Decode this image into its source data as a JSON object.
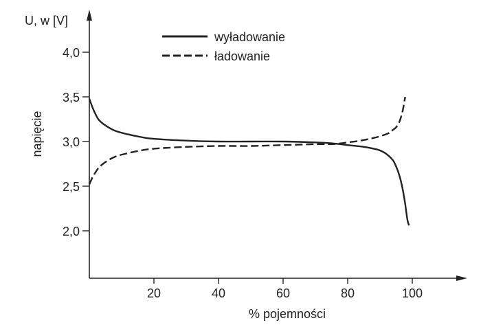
{
  "chart_data": {
    "type": "line",
    "title": "",
    "ylabel_top": "U, w [V]",
    "ylabel_side": "napięcie",
    "xlabel": "% pojemności",
    "xlim": [
      0,
      110
    ],
    "ylim": [
      1.5,
      4.4
    ],
    "xticks": [
      20,
      40,
      60,
      80,
      100
    ],
    "xtick_labels": [
      "20",
      "40",
      "60",
      "80",
      "100"
    ],
    "yticks": [
      2.0,
      2.5,
      3.0,
      3.5,
      4.0
    ],
    "ytick_labels": [
      "2,0",
      "2,5",
      "3,0",
      "3,5",
      "4,0"
    ],
    "grid": false,
    "legend": "top-center",
    "series": [
      {
        "name": "wyładowanie",
        "style": "solid",
        "x": [
          0,
          1,
          2,
          3,
          5,
          8,
          12,
          16,
          20,
          30,
          40,
          50,
          60,
          70,
          75,
          80,
          85,
          88,
          90,
          92,
          94,
          95,
          96,
          97,
          97.8,
          98.5,
          99
        ],
        "y": [
          3.48,
          3.38,
          3.3,
          3.24,
          3.18,
          3.12,
          3.08,
          3.05,
          3.03,
          3.01,
          3.0,
          3.0,
          3.0,
          2.99,
          2.98,
          2.96,
          2.94,
          2.92,
          2.9,
          2.86,
          2.79,
          2.72,
          2.62,
          2.47,
          2.3,
          2.12,
          2.06
        ]
      },
      {
        "name": "ładowanie",
        "style": "dashed",
        "x": [
          0,
          1,
          2,
          3,
          5,
          8,
          12,
          16,
          20,
          30,
          40,
          50,
          60,
          70,
          75,
          78,
          80,
          84,
          88,
          91,
          93,
          94,
          95,
          96,
          97,
          97.8
        ],
        "y": [
          2.52,
          2.6,
          2.66,
          2.71,
          2.77,
          2.83,
          2.87,
          2.9,
          2.92,
          2.94,
          2.95,
          2.95,
          2.96,
          2.97,
          2.97,
          2.98,
          2.99,
          3.01,
          3.04,
          3.07,
          3.1,
          3.13,
          3.16,
          3.22,
          3.34,
          3.5
        ]
      }
    ]
  }
}
